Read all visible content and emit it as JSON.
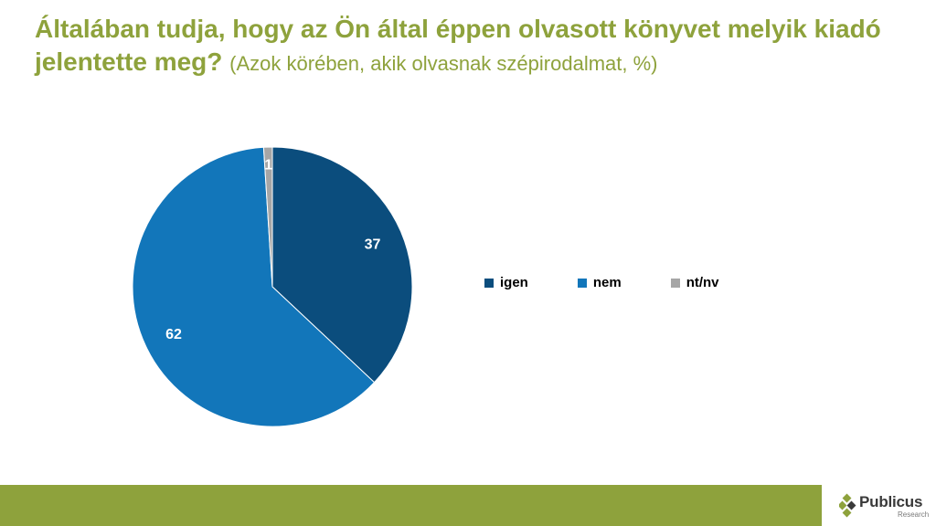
{
  "title": {
    "main": "Általában tudja, hogy az Ön által éppen olvasott könyvet melyik kiadó jelentette meg?",
    "subtitle": "(Azok körében, akik olvasnak szépirodalmat, %)"
  },
  "chart_data": {
    "type": "pie",
    "categories": [
      "igen",
      "nem",
      "nt/nv"
    ],
    "values": [
      37,
      62,
      1
    ],
    "data_labels": [
      "37",
      "62",
      "1"
    ],
    "colors": [
      "#0b4d7d",
      "#1276ba",
      "#a6a6a6"
    ],
    "legend_position": "right"
  },
  "logo": {
    "name": "Publicus",
    "sub": "Research",
    "colors": [
      "#8ea23c",
      "#3a3a3a"
    ]
  },
  "colors": {
    "accent": "#8ea23c"
  }
}
